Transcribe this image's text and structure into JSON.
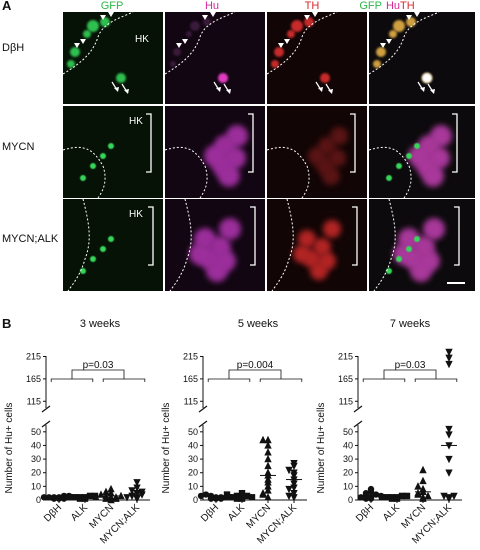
{
  "panel_a": {
    "letter": "A",
    "column_headers": [
      {
        "parts": [
          {
            "text": "GFP",
            "color": "#2db84a"
          }
        ]
      },
      {
        "parts": [
          {
            "text": "Hu",
            "color": "#d6279b"
          }
        ]
      },
      {
        "parts": [
          {
            "text": "TH",
            "color": "#d92b2b"
          }
        ]
      },
      {
        "parts": [
          {
            "text": "GFP",
            "color": "#2db84a"
          },
          {
            "text": "Hu",
            "color": "#d6279b"
          },
          {
            "text": "TH",
            "color": "#d92b2b"
          }
        ]
      }
    ],
    "row_labels": [
      "DβH",
      "MYCN",
      "MYCN;ALK"
    ],
    "tissue_label": "HK"
  },
  "panel_b": {
    "letter": "B",
    "ylabel": "Number of Hu+ cells",
    "charts": [
      {
        "title": "3 weeks",
        "pvalue": "p=0.03"
      },
      {
        "title": "5 weeks",
        "pvalue": "p=0.004"
      },
      {
        "title": "7 weeks",
        "pvalue": "p=0.03"
      }
    ]
  },
  "chart_data": [
    {
      "type": "scatter",
      "title": "3 weeks",
      "ylabel": "Number of Hu+ cells",
      "categories": [
        "DβH",
        "ALK",
        "MYCN",
        "MYCN;ALK"
      ],
      "yticks": [
        0,
        10,
        20,
        30,
        40,
        50,
        115,
        165,
        215
      ],
      "axis_break": [
        55,
        100
      ],
      "series": [
        {
          "category": "DβH",
          "marker": "circle",
          "values": [
            1,
            2,
            2,
            3,
            1,
            2,
            3,
            2,
            1,
            2
          ]
        },
        {
          "category": "ALK",
          "marker": "square",
          "values": [
            1,
            2,
            2,
            3,
            2,
            1,
            3,
            2
          ]
        },
        {
          "category": "MYCN",
          "marker": "triangle-up",
          "values": [
            0,
            1,
            2,
            3,
            5,
            6,
            1,
            2,
            4,
            8,
            3,
            2
          ]
        },
        {
          "category": "MYCN;ALK",
          "marker": "triangle-down",
          "values": [
            1,
            2,
            3,
            5,
            7,
            9,
            13,
            4,
            2,
            6
          ]
        }
      ],
      "comparison": "p=0.03"
    },
    {
      "type": "scatter",
      "title": "5 weeks",
      "ylabel": "Number of Hu+ cells",
      "categories": [
        "DβH",
        "ALK",
        "MYCN",
        "MYCN;ALK"
      ],
      "yticks": [
        0,
        10,
        20,
        30,
        40,
        50,
        115,
        165,
        215
      ],
      "axis_break": [
        55,
        100
      ],
      "series": [
        {
          "category": "DβH",
          "marker": "circle",
          "values": [
            1,
            2,
            3,
            2,
            1,
            4,
            2,
            3,
            1,
            2
          ]
        },
        {
          "category": "ALK",
          "marker": "square",
          "values": [
            1,
            2,
            3,
            3,
            5,
            2,
            1,
            2,
            4
          ]
        },
        {
          "category": "MYCN",
          "marker": "triangle-up",
          "values": [
            2,
            4,
            7,
            10,
            13,
            15,
            18,
            20,
            25,
            30,
            35,
            40,
            44,
            44,
            5
          ]
        },
        {
          "category": "MYCN;ALK",
          "marker": "triangle-down",
          "values": [
            2,
            5,
            9,
            12,
            15,
            18,
            20,
            22,
            25,
            27,
            3,
            8
          ]
        }
      ],
      "comparison": "p=0.004"
    },
    {
      "type": "scatter",
      "title": "7 weeks",
      "ylabel": "Number of Hu+ cells",
      "categories": [
        "DβH",
        "ALK",
        "MYCN",
        "MYCN;ALK"
      ],
      "yticks": [
        0,
        10,
        20,
        30,
        40,
        50,
        115,
        165,
        215
      ],
      "axis_break": [
        55,
        100
      ],
      "series": [
        {
          "category": "DβH",
          "marker": "circle",
          "values": [
            1,
            2,
            3,
            4,
            6,
            2,
            1,
            3,
            5,
            8
          ]
        },
        {
          "category": "ALK",
          "marker": "square",
          "values": [
            1,
            2,
            2,
            3,
            1,
            2,
            3,
            2
          ]
        },
        {
          "category": "MYCN",
          "marker": "triangle-up",
          "values": [
            1,
            2,
            4,
            6,
            8,
            10,
            14,
            22,
            3,
            5
          ]
        },
        {
          "category": "MYCN;ALK",
          "marker": "triangle-down",
          "values": [
            1,
            2,
            3,
            20,
            30,
            40,
            48,
            52,
            198,
            212,
            225,
            3
          ]
        }
      ],
      "comparison": "p=0.03"
    }
  ]
}
